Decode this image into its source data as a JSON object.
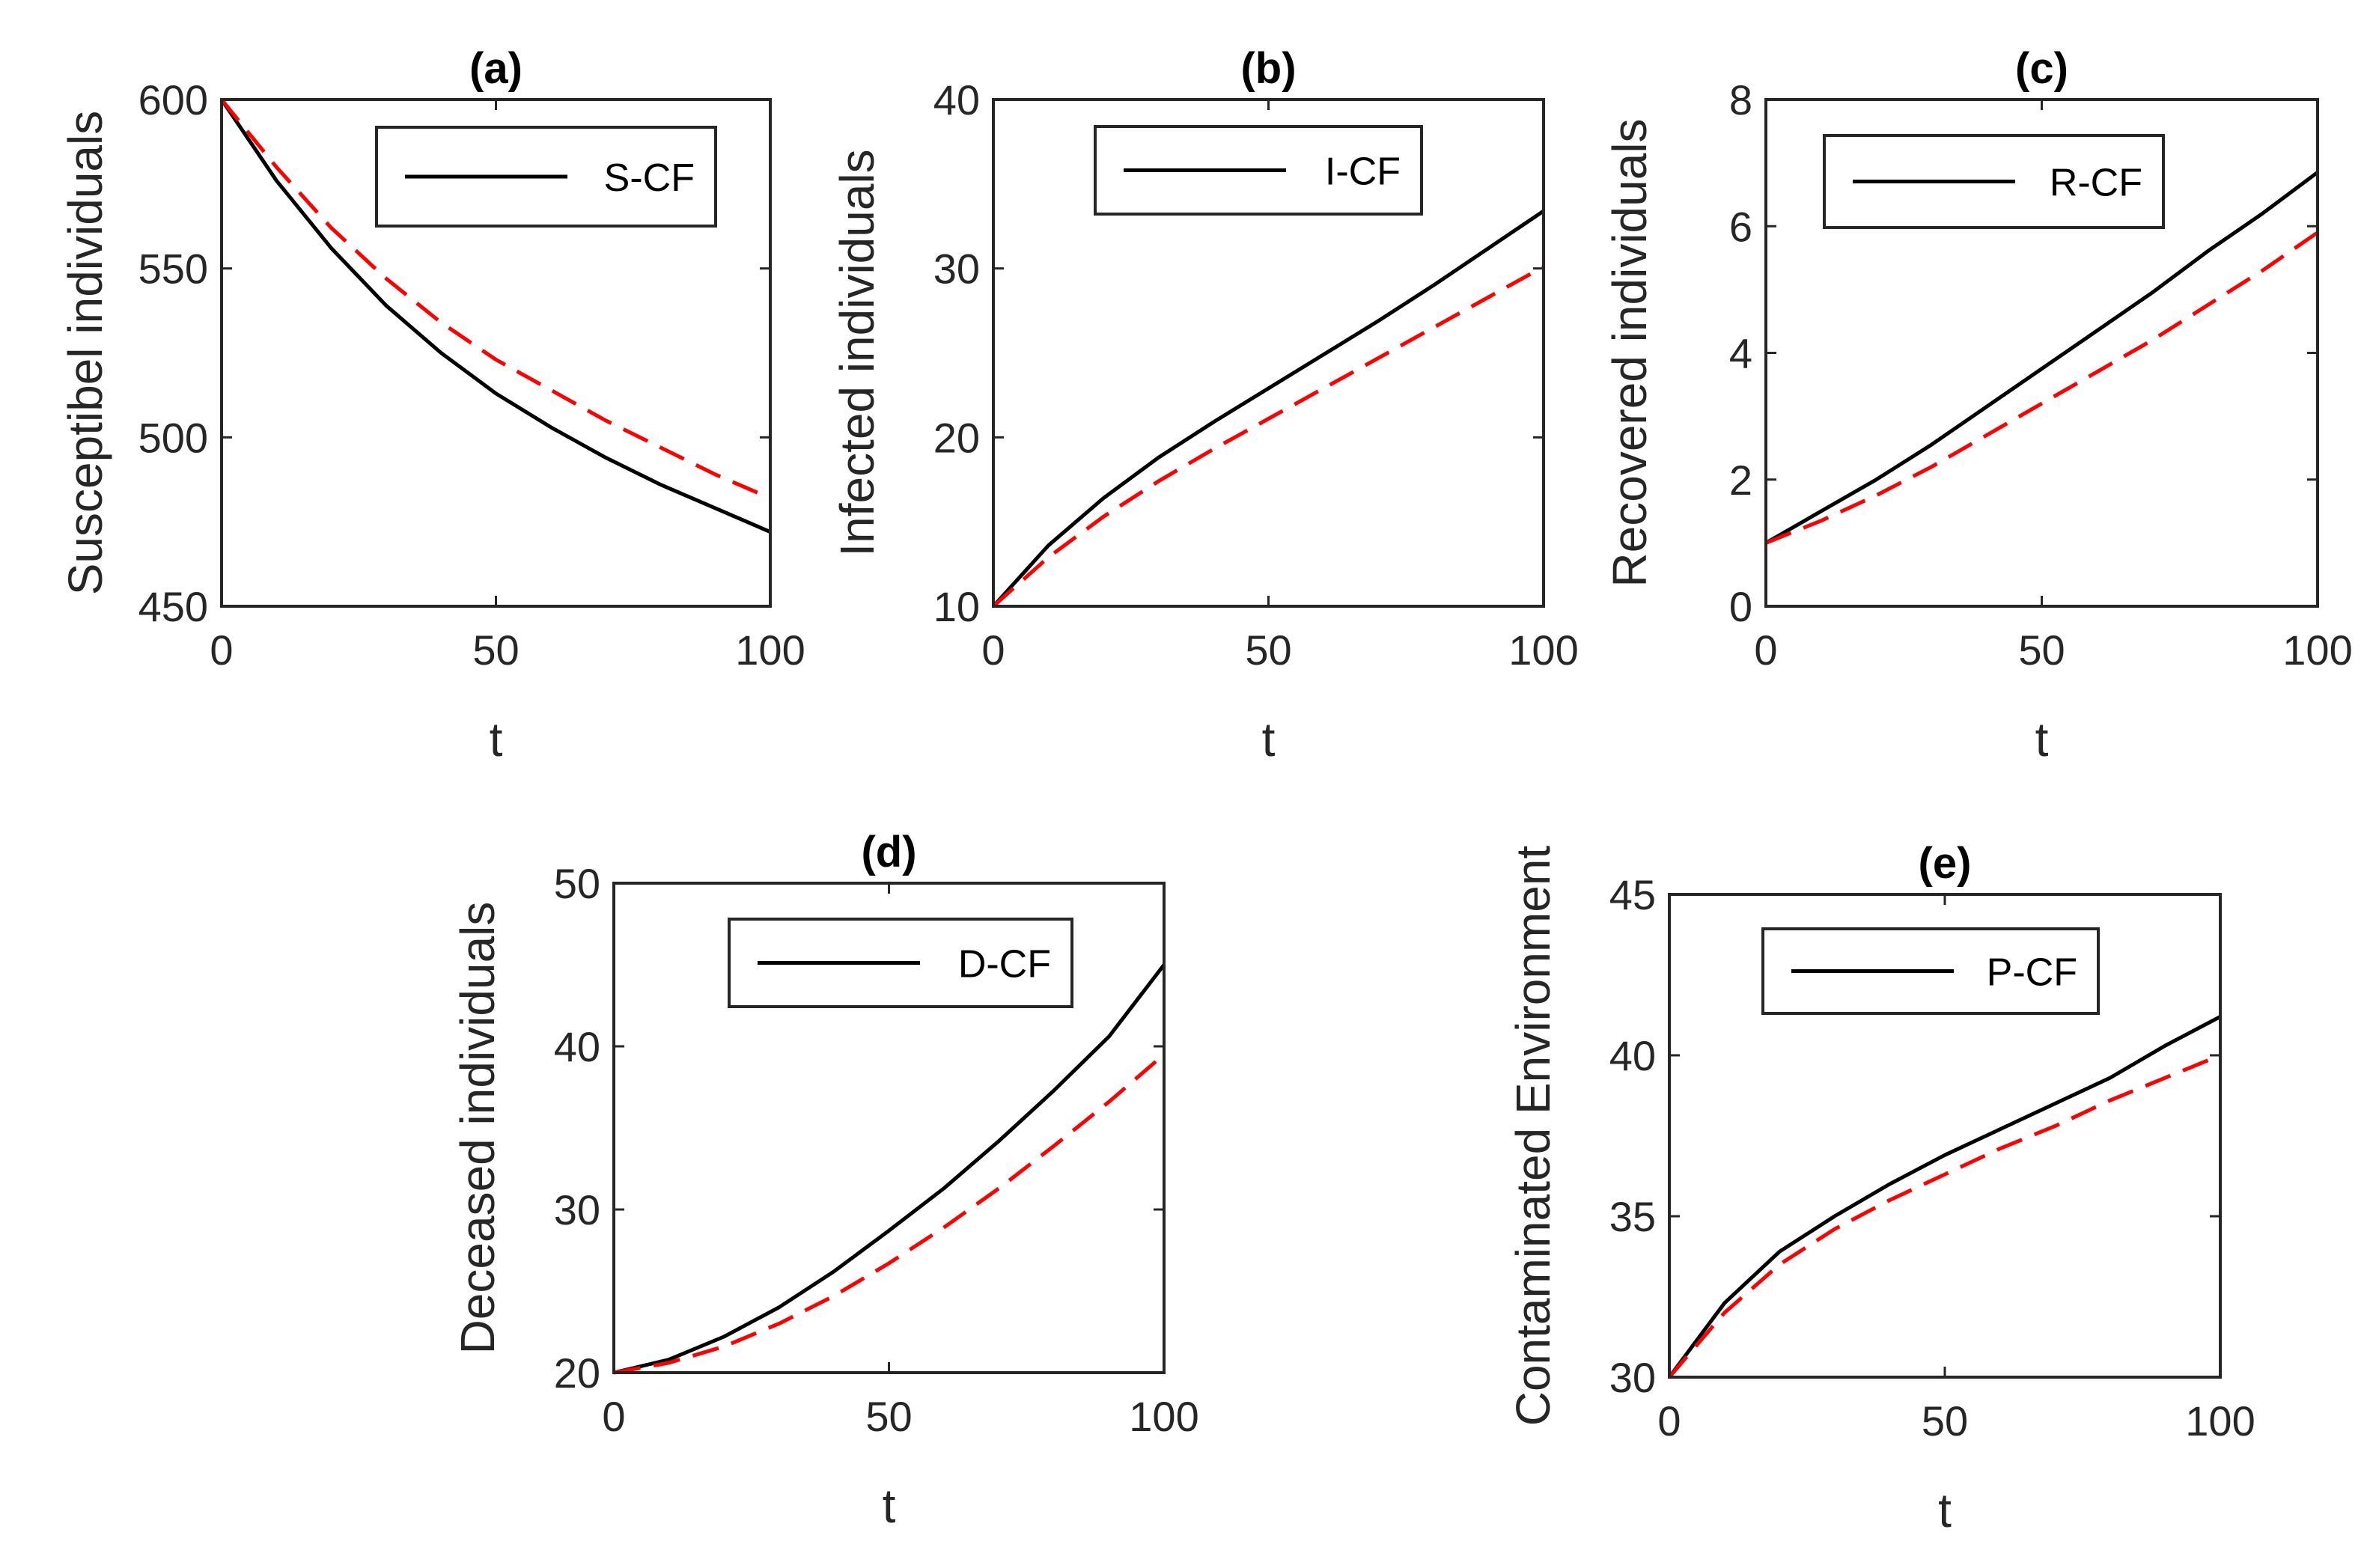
{
  "chart_data": [
    {
      "type": "line",
      "title": "(a)",
      "xlabel": "t",
      "ylabel": "Susceptibel individuals",
      "xlim": [
        0,
        100
      ],
      "ylim": [
        450,
        600
      ],
      "xticks": [
        0,
        50,
        100
      ],
      "yticks": [
        450,
        500,
        550,
        600
      ],
      "legend": [
        "S-CF"
      ],
      "series": [
        {
          "name": "S-CF",
          "style": "solid",
          "color": "#000000",
          "x": [
            0,
            10,
            20,
            30,
            40,
            50,
            60,
            70,
            80,
            90,
            100
          ],
          "y": [
            600,
            576,
            556,
            539,
            525,
            513,
            503,
            494,
            486,
            479,
            472
          ]
        },
        {
          "name": "",
          "style": "dashed",
          "color": "#ff0000",
          "x": [
            0,
            10,
            20,
            30,
            40,
            50,
            60,
            70,
            80,
            90,
            100
          ],
          "y": [
            600,
            580,
            562,
            547,
            534,
            523,
            514,
            505,
            497,
            489,
            482
          ]
        }
      ]
    },
    {
      "type": "line",
      "title": "(b)",
      "xlabel": "t",
      "ylabel": "Infected individuals",
      "xlim": [
        0,
        100
      ],
      "ylim": [
        10,
        40
      ],
      "xticks": [
        0,
        50,
        100
      ],
      "yticks": [
        10,
        20,
        30,
        40
      ],
      "legend": [
        "I-CF"
      ],
      "series": [
        {
          "name": "I-CF",
          "style": "solid",
          "color": "#000000",
          "x": [
            0,
            10,
            20,
            30,
            40,
            50,
            60,
            70,
            80,
            90,
            100
          ],
          "y": [
            10,
            13.6,
            16.4,
            18.8,
            20.9,
            22.9,
            24.9,
            26.9,
            29.0,
            31.2,
            33.4
          ]
        },
        {
          "name": "",
          "style": "dashed",
          "color": "#ff0000",
          "x": [
            0,
            10,
            20,
            30,
            40,
            50,
            60,
            70,
            80,
            90,
            100
          ],
          "y": [
            10,
            12.9,
            15.3,
            17.4,
            19.3,
            21.1,
            22.9,
            24.7,
            26.5,
            28.3,
            30.1
          ]
        }
      ]
    },
    {
      "type": "line",
      "title": "(c)",
      "xlabel": "t",
      "ylabel": "Recovered individuals",
      "xlim": [
        0,
        100
      ],
      "ylim": [
        0,
        8
      ],
      "xticks": [
        0,
        50,
        100
      ],
      "yticks": [
        0,
        2,
        4,
        6,
        8
      ],
      "legend": [
        "R-CF"
      ],
      "series": [
        {
          "name": "R-CF",
          "style": "solid",
          "color": "#000000",
          "x": [
            0,
            10,
            20,
            30,
            40,
            50,
            60,
            70,
            80,
            90,
            100
          ],
          "y": [
            1.0,
            1.5,
            2.0,
            2.55,
            3.15,
            3.75,
            4.35,
            4.95,
            5.6,
            6.2,
            6.85
          ]
        },
        {
          "name": "",
          "style": "dashed",
          "color": "#ff0000",
          "x": [
            0,
            10,
            20,
            30,
            40,
            50,
            60,
            70,
            80,
            90,
            100
          ],
          "y": [
            1.0,
            1.35,
            1.75,
            2.2,
            2.7,
            3.2,
            3.7,
            4.2,
            4.75,
            5.3,
            5.9
          ]
        }
      ]
    },
    {
      "type": "line",
      "title": "(d)",
      "xlabel": "t",
      "ylabel": "Deceased individuals",
      "xlim": [
        0,
        100
      ],
      "ylim": [
        20,
        50
      ],
      "xticks": [
        0,
        50,
        100
      ],
      "yticks": [
        20,
        30,
        40,
        50
      ],
      "legend": [
        "D-CF"
      ],
      "series": [
        {
          "name": "D-CF",
          "style": "solid",
          "color": "#000000",
          "x": [
            0,
            10,
            20,
            30,
            40,
            50,
            60,
            70,
            80,
            90,
            100
          ],
          "y": [
            20,
            20.8,
            22.2,
            24.0,
            26.2,
            28.7,
            31.3,
            34.2,
            37.3,
            40.6,
            45.0
          ]
        },
        {
          "name": "",
          "style": "dashed",
          "color": "#ff0000",
          "x": [
            0,
            10,
            20,
            30,
            40,
            50,
            60,
            70,
            80,
            90,
            100
          ],
          "y": [
            20,
            20.6,
            21.6,
            23.0,
            24.7,
            26.7,
            28.9,
            31.3,
            33.9,
            36.6,
            39.5
          ]
        }
      ]
    },
    {
      "type": "line",
      "title": "(e)",
      "xlabel": "t",
      "ylabel": "Contaminated Environment",
      "xlim": [
        0,
        100
      ],
      "ylim": [
        30,
        45
      ],
      "xticks": [
        0,
        50,
        100
      ],
      "yticks": [
        30,
        35,
        40,
        45
      ],
      "legend": [
        "P-CF"
      ],
      "series": [
        {
          "name": "P-CF",
          "style": "solid",
          "color": "#000000",
          "x": [
            0,
            10,
            20,
            30,
            40,
            50,
            60,
            70,
            80,
            90,
            100
          ],
          "y": [
            30,
            32.3,
            33.9,
            35.0,
            36.0,
            36.9,
            37.7,
            38.5,
            39.3,
            40.3,
            41.2
          ]
        },
        {
          "name": "",
          "style": "dashed",
          "color": "#ff0000",
          "x": [
            0,
            10,
            20,
            30,
            40,
            50,
            60,
            70,
            80,
            90,
            100
          ],
          "y": [
            30,
            32.0,
            33.5,
            34.6,
            35.5,
            36.3,
            37.1,
            37.8,
            38.6,
            39.3,
            40.0
          ]
        }
      ]
    }
  ]
}
